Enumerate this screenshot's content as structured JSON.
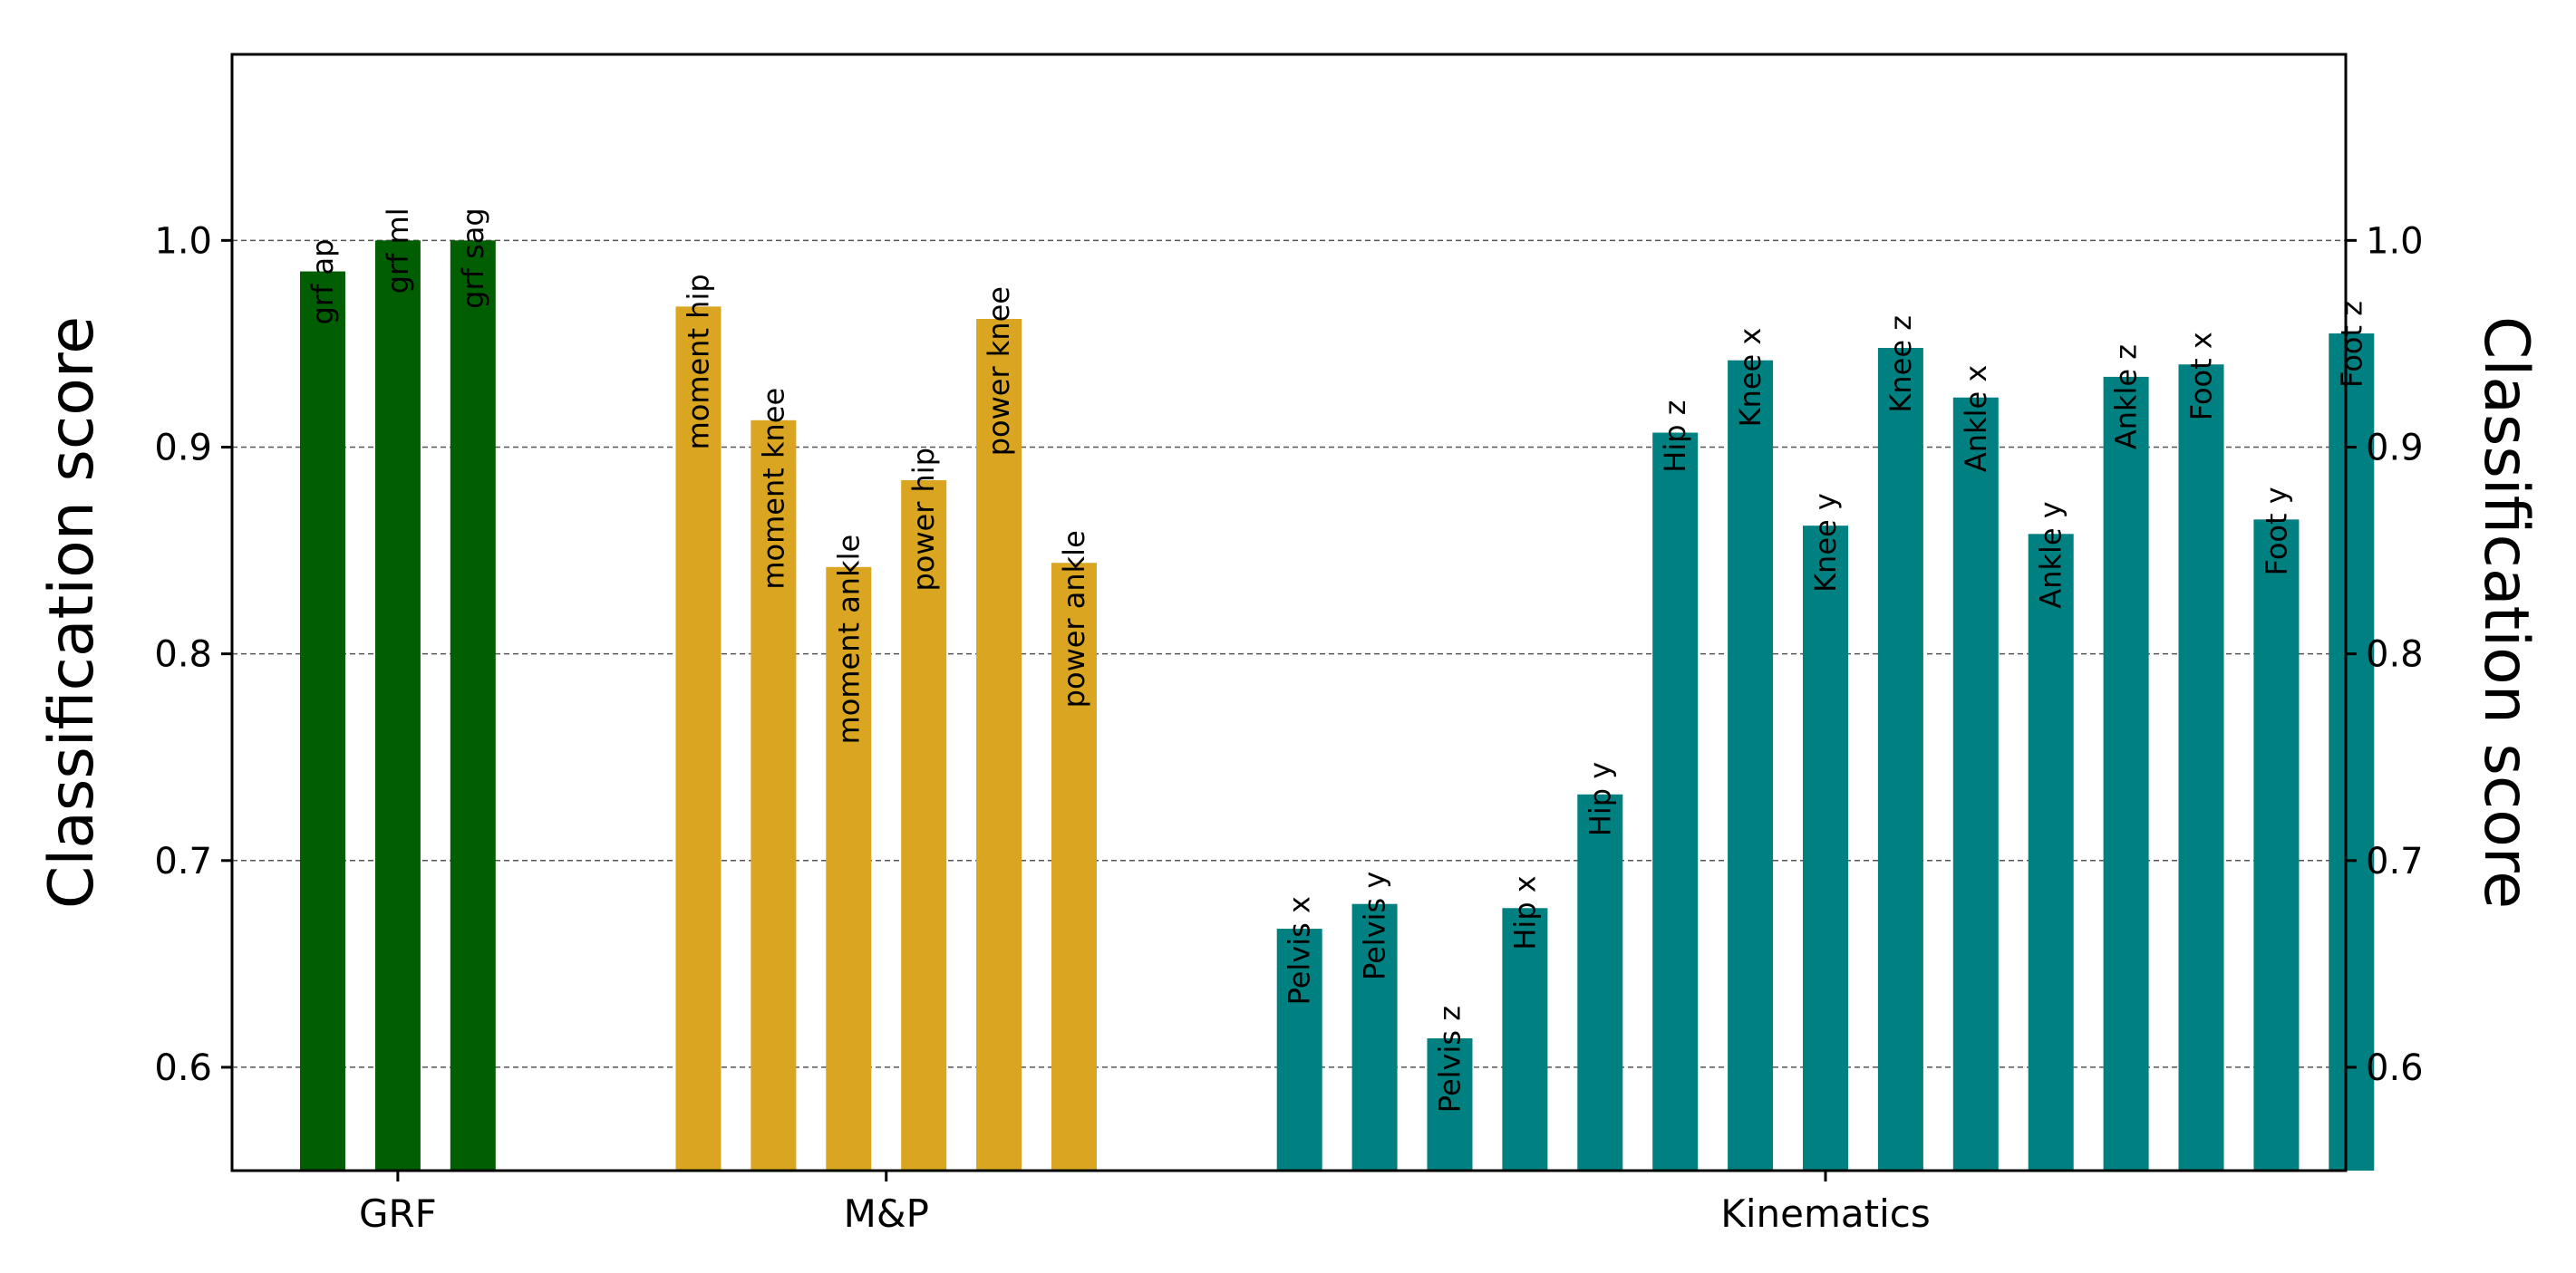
{
  "chart_data": {
    "type": "bar",
    "title": "",
    "ylabel_left": "Classification score",
    "ylabel_right": "Classification score",
    "ylim": [
      0.55,
      1.09
    ],
    "yticks": [
      "0.6",
      "0.7",
      "0.8",
      "0.9",
      "1.0"
    ],
    "grid": "horizontal dashed",
    "groups": [
      {
        "name": "GRF",
        "color": "#025e02",
        "categories": [
          "grf ap",
          "grf ml",
          "grf sag"
        ],
        "values": [
          0.985,
          1.0,
          1.0
        ]
      },
      {
        "name": "M&P",
        "color": "#daa520",
        "categories": [
          "moment hip",
          "moment knee",
          "moment ankle",
          "power hip",
          "power knee",
          "power ankle"
        ],
        "values": [
          0.968,
          0.913,
          0.842,
          0.884,
          0.962,
          0.844
        ]
      },
      {
        "name": "Kinematics",
        "color": "#008080",
        "categories": [
          "Pelvis x",
          "Pelvis y",
          "Pelvis z",
          "Hip x",
          "Hip y",
          "Hip z",
          "Knee x",
          "Knee y",
          "Knee z",
          "Ankle x",
          "Ankle y",
          "Ankle z",
          "Foot x",
          "Foot y",
          "Foot z"
        ],
        "values": [
          0.667,
          0.679,
          0.614,
          0.677,
          0.732,
          0.907,
          0.942,
          0.862,
          0.948,
          0.924,
          0.858,
          0.934,
          0.94,
          0.865,
          0.955
        ]
      }
    ]
  }
}
